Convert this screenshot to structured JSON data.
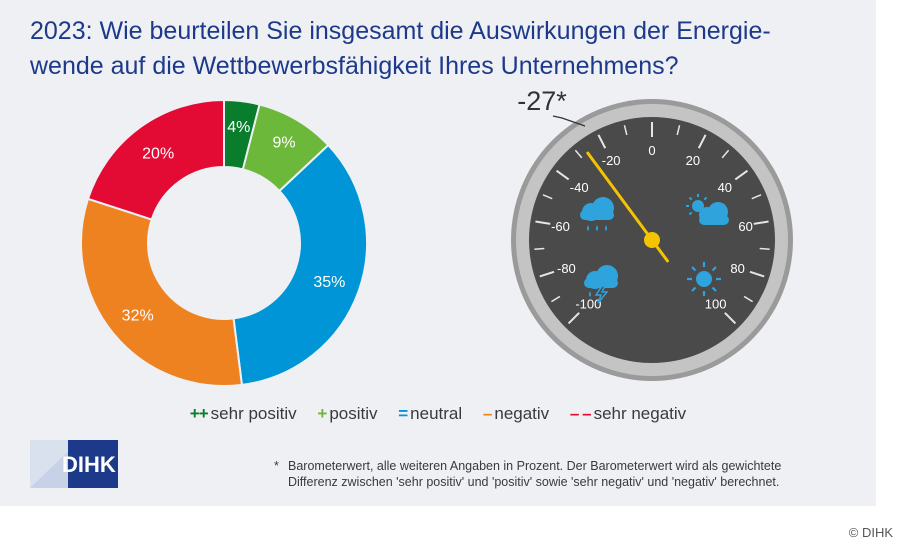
{
  "title": {
    "line1": "2023: Wie beurteilen Sie insgesamt die Auswirkungen der Energie-",
    "line2": "wende auf die Wettbewerbsfähigkeit Ihres Unternehmens?"
  },
  "chart_data": [
    {
      "type": "pie",
      "variant": "donut",
      "unit": "%",
      "slices": [
        {
          "label": "sehr positiv",
          "value": 4,
          "display": "4%",
          "color": "#0a7d2c"
        },
        {
          "label": "positiv",
          "value": 9,
          "display": "9%",
          "color": "#6cb83a"
        },
        {
          "label": "neutral",
          "value": 35,
          "display": "35%",
          "color": "#0095d6"
        },
        {
          "label": "negativ",
          "value": 32,
          "display": "32%",
          "color": "#ef8220"
        },
        {
          "label": "sehr negativ",
          "value": 20,
          "display": "20%",
          "color": "#e30a34"
        }
      ]
    },
    {
      "type": "gauge",
      "value": -27,
      "value_label": "-27*",
      "range": [
        -100,
        100
      ],
      "tick_labels": [
        "-100",
        "-80",
        "-60",
        "-40",
        "-20",
        "0",
        "20",
        "40",
        "60",
        "80",
        "100"
      ],
      "icons": [
        "rain-cloud-icon",
        "sun-cloud-icon",
        "thunderstorm-icon",
        "sun-icon"
      ],
      "colors": {
        "face": "#4a4a4a",
        "rim": "#b3b3b3",
        "needle": "#f5c400",
        "icons": "#2ea3dc"
      }
    }
  ],
  "legend": [
    {
      "marker": "++",
      "label": "sehr positiv",
      "color": "#0a7d2c"
    },
    {
      "marker": "+",
      "label": "positiv",
      "color": "#6cb83a"
    },
    {
      "marker": "=",
      "label": "neutral",
      "color": "#0095d6"
    },
    {
      "marker": "–",
      "label": "negativ",
      "color": "#ef8220"
    },
    {
      "marker": "– –",
      "label": "sehr negativ",
      "color": "#e30a34"
    }
  ],
  "logo": {
    "text": "DIHK"
  },
  "footnote": {
    "star": "*",
    "line1": "Barometerwert, alle weiteren Angaben in Prozent. Der Barometerwert wird als gewichtete",
    "line2": "Differenz zwischen 'sehr positiv' und 'positiv' sowie 'sehr negativ' und 'negativ' berechnet."
  },
  "copyright": "© DIHK"
}
